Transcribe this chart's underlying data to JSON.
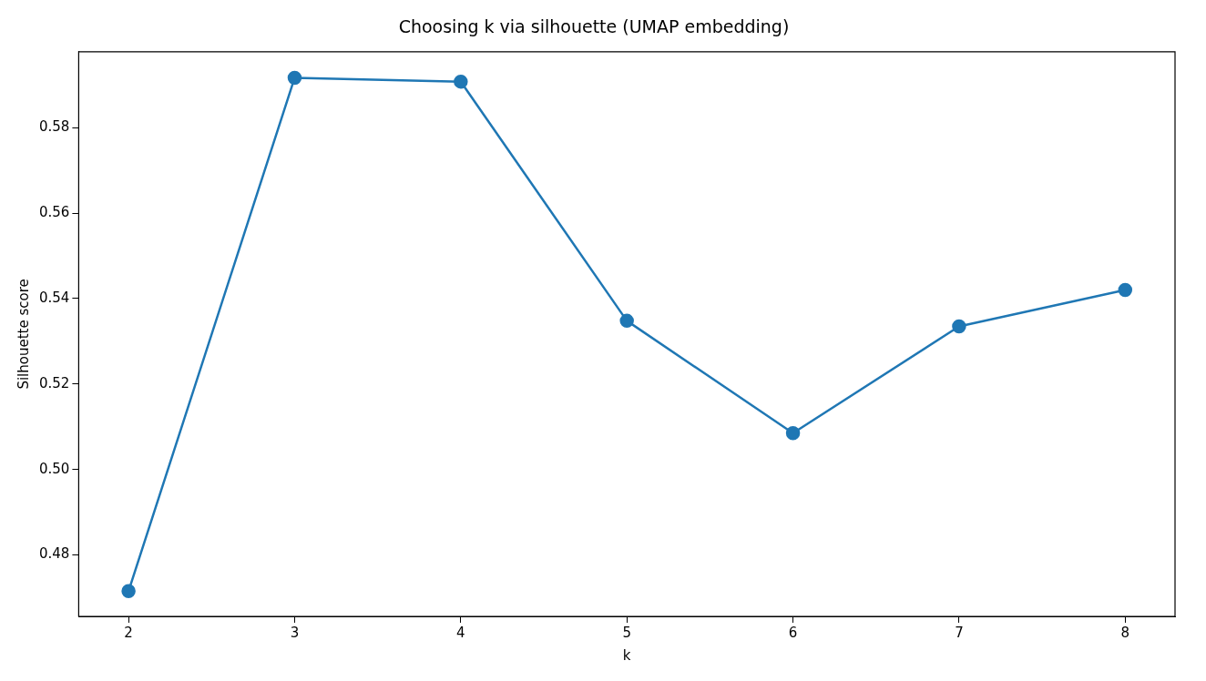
{
  "chart_data": {
    "type": "line",
    "title": "Choosing k via silhouette (UMAP embedding)",
    "xlabel": "k",
    "ylabel": "Silhouette score",
    "x": [
      2,
      3,
      4,
      5,
      6,
      7,
      8
    ],
    "series": [
      {
        "color": "#1f77b4",
        "values": [
          0.4715,
          0.5917,
          0.5908,
          0.5348,
          0.5085,
          0.5335,
          0.542
        ]
      }
    ],
    "xlim": [
      1.7,
      8.3
    ],
    "xticks": [
      2,
      3,
      4,
      5,
      6,
      7,
      8
    ],
    "ylim": [
      0.4656,
      0.5978
    ],
    "yticks": [
      0.48,
      {
        "value": 0.5,
        "label": "0.50"
      },
      0.52,
      0.54,
      0.56,
      0.58
    ],
    "marker": "circle",
    "line_style": "solid",
    "grid": false,
    "legend": false
  }
}
